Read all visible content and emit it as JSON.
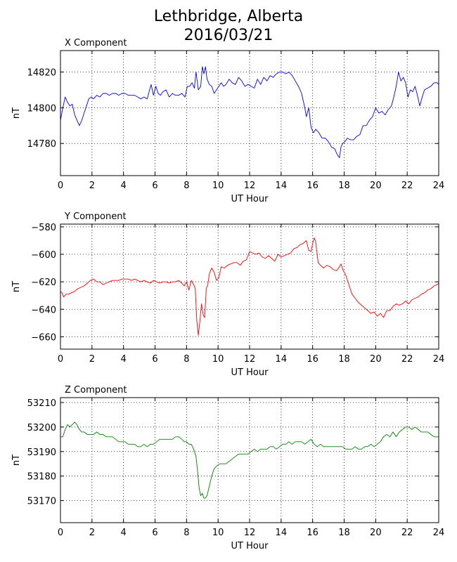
{
  "title_line1": "Lethbridge, Alberta",
  "title_line2": "2016/03/21",
  "chart_data": [
    {
      "type": "line",
      "title": "X Component",
      "xlabel": "UT Hour",
      "ylabel": "nT",
      "xlim": [
        0,
        24
      ],
      "ylim": [
        14762,
        14832
      ],
      "xticks": [
        0,
        2,
        4,
        6,
        8,
        10,
        12,
        14,
        16,
        18,
        20,
        22,
        24
      ],
      "yticks": [
        14780,
        14800,
        14820
      ],
      "grid": true,
      "color": "#0000ff",
      "series": [
        {
          "x": [
            0,
            0.15,
            0.3,
            0.45,
            0.6,
            0.75,
            0.9,
            1.05,
            1.2,
            1.35,
            1.5,
            1.65,
            1.8,
            1.95,
            2.1,
            2.3,
            2.5,
            2.7,
            2.9,
            3.1,
            3.3,
            3.5,
            3.7,
            3.9,
            4.1,
            4.3,
            4.5,
            4.7,
            4.9,
            5.1,
            5.3,
            5.5,
            5.6,
            5.75,
            5.9,
            6.05,
            6.2,
            6.35,
            6.5,
            6.7,
            6.9,
            7.1,
            7.3,
            7.5,
            7.7,
            7.9,
            8.05,
            8.2,
            8.35,
            8.5,
            8.6,
            8.75,
            8.9,
            9.0,
            9.1,
            9.2,
            9.3,
            9.45,
            9.6,
            9.75,
            9.9,
            10.05,
            10.2,
            10.35,
            10.5,
            10.7,
            10.9,
            11.1,
            11.3,
            11.5,
            11.7,
            11.9,
            12.1,
            12.3,
            12.5,
            12.7,
            12.9,
            13.1,
            13.3,
            13.5,
            13.7,
            13.9,
            14.1,
            14.3,
            14.5,
            14.7,
            14.9,
            15.1,
            15.3,
            15.5,
            15.6,
            15.75,
            15.9,
            16.05,
            16.2,
            16.4,
            16.6,
            16.8,
            17.0,
            17.2,
            17.4,
            17.55,
            17.7,
            17.8,
            17.9,
            18.05,
            18.2,
            18.4,
            18.6,
            18.8,
            19.0,
            19.2,
            19.4,
            19.6,
            19.8,
            20.0,
            20.2,
            20.4,
            20.6,
            20.8,
            21.0,
            21.15,
            21.3,
            21.45,
            21.6,
            21.75,
            21.9,
            22.05,
            22.2,
            22.35,
            22.5,
            22.65,
            22.8,
            22.95,
            23.1,
            23.3,
            23.5,
            23.7,
            23.9,
            24.0
          ],
          "values": [
            14793,
            14800,
            14806,
            14803,
            14801,
            14802,
            14796,
            14793,
            14790,
            14793,
            14797,
            14801,
            14805,
            14806,
            14805,
            14807,
            14806,
            14808,
            14808,
            14807,
            14808,
            14808,
            14807,
            14808,
            14808,
            14807,
            14807,
            14807,
            14806,
            14805,
            14806,
            14805,
            14808,
            14813,
            14807,
            14812,
            14808,
            14807,
            14809,
            14810,
            14806,
            14808,
            14807,
            14807,
            14808,
            14806,
            14812,
            14812,
            14814,
            14811,
            14820,
            14810,
            14812,
            14823,
            14819,
            14823,
            14816,
            14813,
            14812,
            14808,
            14810,
            14812,
            14814,
            14812,
            14813,
            14816,
            14814,
            14813,
            14817,
            14815,
            14812,
            14813,
            14812,
            14811,
            14816,
            14813,
            14817,
            14815,
            14818,
            14817,
            14819,
            14820,
            14820,
            14819,
            14820,
            14818,
            14815,
            14812,
            14808,
            14800,
            14795,
            14800,
            14789,
            14786,
            14788,
            14786,
            14783,
            14783,
            14781,
            14778,
            14777,
            14774,
            14772,
            14778,
            14780,
            14781,
            14783,
            14782,
            14782,
            14784,
            14785,
            14790,
            14790,
            14793,
            14795,
            14800,
            14797,
            14798,
            14796,
            14799,
            14801,
            14806,
            14812,
            14820,
            14815,
            14817,
            14814,
            14806,
            14810,
            14809,
            14812,
            14807,
            14801,
            14806,
            14810,
            14811,
            14812,
            14814,
            14814,
            14813
          ]
        }
      ]
    },
    {
      "type": "line",
      "title": "Y Component",
      "xlabel": "UT Hour",
      "ylabel": "nT",
      "xlim": [
        0,
        24
      ],
      "ylim": [
        -669,
        -578
      ],
      "xticks": [
        0,
        2,
        4,
        6,
        8,
        10,
        12,
        14,
        16,
        18,
        20,
        22,
        24
      ],
      "yticks": [
        -580,
        -600,
        -620,
        -640,
        -660
      ],
      "grid": true,
      "color": "#ff0000",
      "series": [
        {
          "x": [
            0,
            0.1,
            0.2,
            0.35,
            0.5,
            0.7,
            0.9,
            1.1,
            1.3,
            1.5,
            1.7,
            1.9,
            2.1,
            2.3,
            2.5,
            2.7,
            2.9,
            3.1,
            3.3,
            3.5,
            3.7,
            3.9,
            4.1,
            4.3,
            4.5,
            4.7,
            4.9,
            5.1,
            5.3,
            5.5,
            5.7,
            5.9,
            6.1,
            6.3,
            6.5,
            6.7,
            6.9,
            7.1,
            7.3,
            7.5,
            7.7,
            7.85,
            8.0,
            8.15,
            8.3,
            8.45,
            8.55,
            8.65,
            8.75,
            8.85,
            8.95,
            9.05,
            9.15,
            9.25,
            9.35,
            9.45,
            9.6,
            9.75,
            9.9,
            10.05,
            10.2,
            10.4,
            10.6,
            10.8,
            11.0,
            11.2,
            11.4,
            11.6,
            11.8,
            12.0,
            12.2,
            12.4,
            12.6,
            12.8,
            13.0,
            13.2,
            13.4,
            13.6,
            13.8,
            14.0,
            14.2,
            14.4,
            14.6,
            14.8,
            15.0,
            15.2,
            15.4,
            15.6,
            15.75,
            15.9,
            16.0,
            16.1,
            16.2,
            16.35,
            16.5,
            16.7,
            16.9,
            17.1,
            17.3,
            17.5,
            17.65,
            17.8,
            17.95,
            18.1,
            18.3,
            18.5,
            18.7,
            18.9,
            19.1,
            19.3,
            19.5,
            19.7,
            19.9,
            20.1,
            20.3,
            20.5,
            20.7,
            20.9,
            21.1,
            21.3,
            21.5,
            21.7,
            21.9,
            22.1,
            22.3,
            22.5,
            22.7,
            22.9,
            23.1,
            23.3,
            23.5,
            23.7,
            23.9,
            24.0
          ],
          "values": [
            -627,
            -628,
            -631,
            -629,
            -629,
            -628,
            -627,
            -625,
            -624,
            -623,
            -621,
            -619,
            -618,
            -620,
            -620,
            -622,
            -621,
            -620,
            -619,
            -619,
            -619,
            -618,
            -618,
            -618,
            -619,
            -618,
            -619,
            -620,
            -619,
            -620,
            -621,
            -619,
            -620,
            -621,
            -620,
            -620,
            -621,
            -620,
            -620,
            -619,
            -621,
            -623,
            -620,
            -626,
            -619,
            -622,
            -625,
            -648,
            -659,
            -648,
            -636,
            -644,
            -646,
            -625,
            -622,
            -614,
            -610,
            -613,
            -619,
            -617,
            -609,
            -610,
            -608,
            -607,
            -606,
            -606,
            -608,
            -605,
            -604,
            -598,
            -599,
            -600,
            -599,
            -602,
            -603,
            -601,
            -603,
            -605,
            -600,
            -602,
            -601,
            -600,
            -599,
            -596,
            -595,
            -593,
            -592,
            -590,
            -597,
            -598,
            -592,
            -588,
            -591,
            -606,
            -608,
            -610,
            -608,
            -609,
            -611,
            -612,
            -610,
            -607,
            -612,
            -615,
            -622,
            -629,
            -632,
            -635,
            -637,
            -639,
            -641,
            -643,
            -642,
            -645,
            -643,
            -646,
            -641,
            -641,
            -638,
            -636,
            -637,
            -636,
            -634,
            -636,
            -633,
            -632,
            -631,
            -629,
            -628,
            -626,
            -625,
            -623,
            -622,
            -621
          ]
        }
      ]
    },
    {
      "type": "line",
      "title": "Z Component",
      "xlabel": "UT Hour",
      "ylabel": "nT",
      "xlim": [
        0,
        24
      ],
      "ylim": [
        53161,
        53212
      ],
      "xticks": [
        0,
        2,
        4,
        6,
        8,
        10,
        12,
        14,
        16,
        18,
        20,
        22,
        24
      ],
      "yticks": [
        53170,
        53180,
        53190,
        53200,
        53210
      ],
      "grid": true,
      "color": "#008000",
      "series": [
        {
          "x": [
            0,
            0.15,
            0.3,
            0.45,
            0.6,
            0.75,
            0.9,
            1.05,
            1.2,
            1.35,
            1.5,
            1.7,
            1.9,
            2.1,
            2.3,
            2.5,
            2.7,
            2.9,
            3.1,
            3.3,
            3.5,
            3.7,
            3.9,
            4.1,
            4.3,
            4.5,
            4.7,
            4.9,
            5.1,
            5.3,
            5.5,
            5.7,
            5.9,
            6.1,
            6.3,
            6.5,
            6.7,
            6.9,
            7.1,
            7.3,
            7.5,
            7.7,
            7.85,
            8.0,
            8.15,
            8.3,
            8.45,
            8.6,
            8.7,
            8.8,
            8.9,
            9.0,
            9.1,
            9.2,
            9.3,
            9.45,
            9.6,
            9.75,
            9.9,
            10.1,
            10.3,
            10.5,
            10.7,
            10.9,
            11.1,
            11.3,
            11.5,
            11.7,
            11.9,
            12.1,
            12.3,
            12.5,
            12.7,
            12.9,
            13.1,
            13.3,
            13.5,
            13.7,
            13.9,
            14.1,
            14.3,
            14.5,
            14.7,
            14.9,
            15.1,
            15.3,
            15.5,
            15.7,
            15.9,
            16.1,
            16.3,
            16.5,
            16.7,
            16.9,
            17.1,
            17.3,
            17.5,
            17.7,
            17.9,
            18.1,
            18.3,
            18.5,
            18.7,
            18.9,
            19.1,
            19.3,
            19.5,
            19.7,
            19.9,
            20.1,
            20.3,
            20.5,
            20.7,
            20.9,
            21.1,
            21.3,
            21.5,
            21.7,
            21.9,
            22.1,
            22.3,
            22.5,
            22.7,
            22.9,
            23.1,
            23.3,
            23.5,
            23.7,
            23.9,
            24.0
          ],
          "values": [
            53196,
            53196,
            53199,
            53201,
            53200,
            53201,
            53202,
            53201,
            53199,
            53198,
            53198,
            53197,
            53197,
            53197,
            53198,
            53197,
            53197,
            53196,
            53196,
            53196,
            53195,
            53194,
            53194,
            53194,
            53193,
            53193,
            53193,
            53192,
            53192,
            53193,
            53192,
            53193,
            53193,
            53194,
            53195,
            53195,
            53195,
            53195,
            53195,
            53196,
            53196,
            53195,
            53194,
            53194,
            53193,
            53193,
            53191,
            53188,
            53182,
            53175,
            53172,
            53173,
            53171,
            53171,
            53172,
            53176,
            53180,
            53183,
            53184,
            53185,
            53185,
            53185,
            53186,
            53187,
            53188,
            53189,
            53189,
            53189,
            53189,
            53190,
            53191,
            53190,
            53191,
            53191,
            53191,
            53192,
            53192,
            53191,
            53192,
            53193,
            53193,
            53194,
            53193,
            53194,
            53194,
            53194,
            53193,
            53194,
            53195,
            53193,
            53192,
            53193,
            53192,
            53192,
            53192,
            53192,
            53192,
            53192,
            53192,
            53191,
            53191,
            53191,
            53192,
            53191,
            53191,
            53192,
            53192,
            53193,
            53192,
            53193,
            53194,
            53196,
            53197,
            53196,
            53198,
            53196,
            53198,
            53199,
            53200,
            53200,
            53199,
            53200,
            53199,
            53198,
            53198,
            53198,
            53197,
            53196,
            53196,
            53196
          ]
        }
      ]
    }
  ]
}
